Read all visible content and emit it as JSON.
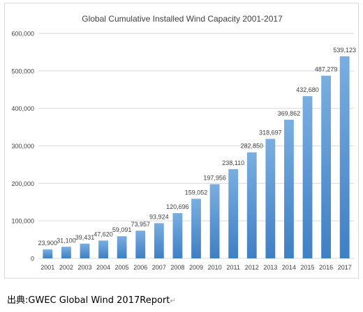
{
  "chart_data": {
    "type": "bar",
    "title": "Global Cumulative Installed Wind Capacity 2001-2017",
    "xlabel": "",
    "ylabel": "",
    "categories": [
      "2001",
      "2002",
      "2003",
      "2004",
      "2005",
      "2006",
      "2007",
      "2008",
      "2009",
      "2010",
      "2011",
      "2012",
      "2013",
      "2014",
      "2015",
      "2016",
      "2017"
    ],
    "values": [
      23900,
      31100,
      39431,
      47620,
      59091,
      73957,
      93924,
      120696,
      159052,
      197956,
      238110,
      282850,
      318697,
      369862,
      432680,
      487279,
      539123
    ],
    "data_labels": [
      "23,900",
      "31,100",
      "39,431",
      "47,620",
      "59,091",
      "73,957",
      "93,924",
      "120,696",
      "159,052",
      "197,956",
      "238,110",
      "282,850",
      "318,697",
      "369,862",
      "432,680",
      "487,279",
      "539,123"
    ],
    "ylim": [
      0,
      600000
    ],
    "yticks": [
      0,
      100000,
      200000,
      300000,
      400000,
      500000,
      600000
    ],
    "ytick_labels": [
      "0",
      "100,000",
      "200,000",
      "300,000",
      "400,000",
      "500,000",
      "600,000"
    ],
    "grid": true,
    "legend": "none",
    "colors": {
      "bar_top": "#7aaee0",
      "bar_bottom": "#3f7fc4",
      "grid": "#d9d9d9",
      "text": "#404040"
    }
  },
  "source": {
    "label": "出典",
    "separator": ":",
    "text": "GWEC Global Wind 2017Report",
    "mark": "↵"
  }
}
